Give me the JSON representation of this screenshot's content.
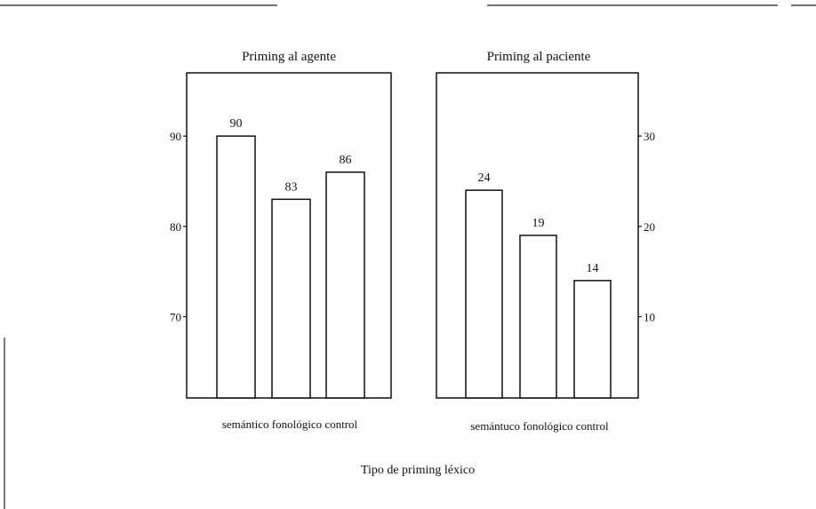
{
  "figure": {
    "x_axis_title": "Tipo de priming léxico"
  },
  "chart_data": [
    {
      "type": "bar",
      "title": "Priming al agente",
      "categories": [
        "semántico",
        "fonológico",
        "control"
      ],
      "x_tick_text": "semántico fonológico control",
      "values": [
        90,
        83,
        86
      ],
      "data_labels": [
        "90",
        "83",
        "86"
      ],
      "ylim": [
        61,
        97
      ],
      "y_ticks": [
        70,
        80,
        90
      ],
      "y_tick_labels": [
        "70",
        "80",
        "90"
      ],
      "y_axis_side": "left",
      "grid": false
    },
    {
      "type": "bar",
      "title": "Priming al paciente",
      "categories": [
        "semántico",
        "fonológico",
        "control"
      ],
      "x_tick_text": "semántuco fonológico control",
      "values": [
        24,
        19,
        14
      ],
      "data_labels": [
        "24",
        "19",
        "14"
      ],
      "ylim": [
        1,
        37
      ],
      "y_ticks": [
        10,
        20,
        30
      ],
      "y_tick_labels": [
        "10",
        "20",
        "30"
      ],
      "y_axis_side": "right",
      "grid": false
    }
  ]
}
